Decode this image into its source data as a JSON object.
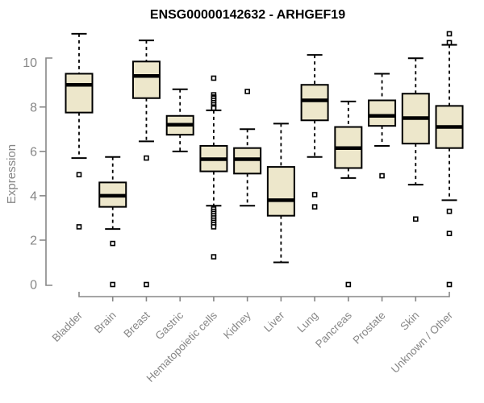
{
  "page": {
    "background": "#ffffff"
  },
  "chart_data": {
    "type": "box",
    "title": "ENSG00000142632 - ARHGEF19",
    "xlabel": "",
    "ylabel": "Expression",
    "ylim": [
      0,
      11.5
    ],
    "yticks": [
      0,
      2,
      4,
      6,
      8,
      10
    ],
    "grid": false,
    "legend": "none",
    "categories": [
      "Bladder",
      "Brain",
      "Breast",
      "Gastric",
      "Hematopoietic cells",
      "Kidney",
      "Liver",
      "Lung",
      "Pancreas",
      "Prostate",
      "Skin",
      "Unknown / Other"
    ],
    "series": [
      {
        "name": "Bladder",
        "whisker_low": 5.7,
        "q1": 7.75,
        "median": 9.0,
        "q3": 9.5,
        "whisker_high": 11.3,
        "outliers": [
          4.95,
          2.6
        ]
      },
      {
        "name": "Brain",
        "whisker_low": 2.5,
        "q1": 3.5,
        "median": 4.0,
        "q3": 4.6,
        "whisker_high": 5.75,
        "outliers": [
          1.85,
          0
        ]
      },
      {
        "name": "Breast",
        "whisker_low": 6.45,
        "q1": 8.4,
        "median": 9.4,
        "q3": 10.05,
        "whisker_high": 11.0,
        "outliers": [
          5.7,
          0
        ]
      },
      {
        "name": "Gastric",
        "whisker_low": 6.0,
        "q1": 6.75,
        "median": 7.2,
        "q3": 7.6,
        "whisker_high": 8.8,
        "outliers": []
      },
      {
        "name": "Hematopoietic cells",
        "whisker_low": 3.55,
        "q1": 5.1,
        "median": 5.65,
        "q3": 6.25,
        "whisker_high": 7.85,
        "outliers": [
          9.3,
          8.55,
          8.45,
          8.4,
          8.3,
          8.2,
          8.1,
          8.0,
          7.95,
          3.4,
          3.3,
          3.2,
          3.1,
          3.0,
          2.9,
          2.8,
          2.7,
          2.6,
          1.25
        ]
      },
      {
        "name": "Kidney",
        "whisker_low": 3.55,
        "q1": 5.0,
        "median": 5.65,
        "q3": 6.15,
        "whisker_high": 7.0,
        "outliers": [
          8.7
        ]
      },
      {
        "name": "Liver",
        "whisker_low": 1.0,
        "q1": 3.1,
        "median": 3.8,
        "q3": 5.3,
        "whisker_high": 7.25,
        "outliers": []
      },
      {
        "name": "Lung",
        "whisker_low": 5.75,
        "q1": 7.4,
        "median": 8.3,
        "q3": 9.0,
        "whisker_high": 10.35,
        "outliers": [
          4.05,
          3.5
        ]
      },
      {
        "name": "Pancreas",
        "whisker_low": 4.8,
        "q1": 5.25,
        "median": 6.15,
        "q3": 7.1,
        "whisker_high": 8.25,
        "outliers": [
          0
        ]
      },
      {
        "name": "Prostate",
        "whisker_low": 6.25,
        "q1": 7.15,
        "median": 7.6,
        "q3": 8.3,
        "whisker_high": 9.5,
        "outliers": [
          4.9
        ]
      },
      {
        "name": "Skin",
        "whisker_low": 4.5,
        "q1": 6.35,
        "median": 7.5,
        "q3": 8.6,
        "whisker_high": 10.2,
        "outliers": [
          2.95
        ]
      },
      {
        "name": "Unknown / Other",
        "whisker_low": 3.8,
        "q1": 6.15,
        "median": 7.1,
        "q3": 8.05,
        "whisker_high": 10.8,
        "outliers": [
          11.3,
          10.9,
          3.3,
          2.3,
          0
        ]
      }
    ],
    "colors": {
      "box_fill": "#EDE7CB",
      "box_stroke": "#000000",
      "median": "#000000",
      "whisker": "#000000",
      "outlier_fill": "#ffffff",
      "axis": "#878787",
      "tick_label": "#878787",
      "title": "#000000"
    }
  }
}
